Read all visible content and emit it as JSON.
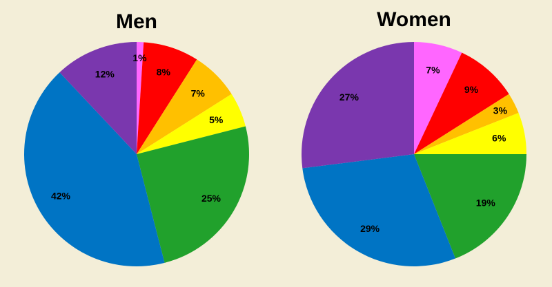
{
  "chart_data": [
    {
      "type": "pie",
      "title": "Men",
      "categories": [
        "pink",
        "red",
        "orange",
        "yellow",
        "green",
        "blue",
        "purple"
      ],
      "values": [
        1,
        8,
        7,
        5,
        25,
        42,
        12
      ],
      "labels": [
        "1%",
        "8%",
        "7%",
        "5%",
        "25%",
        "42%",
        "12%"
      ],
      "colors": [
        "#ff66ff",
        "#ff0000",
        "#ffc000",
        "#ffff00",
        "#21a12c",
        "#0074c4",
        "#7a37ae"
      ]
    },
    {
      "type": "pie",
      "title": "Women",
      "categories": [
        "pink",
        "red",
        "orange",
        "yellow",
        "green",
        "blue",
        "purple"
      ],
      "values": [
        7,
        9,
        3,
        6,
        19,
        29,
        27
      ],
      "labels": [
        "7%",
        "9%",
        "3%",
        "6%",
        "19%",
        "29%",
        "27%"
      ],
      "colors": [
        "#ff66ff",
        "#ff0000",
        "#ffc000",
        "#ffff00",
        "#21a12c",
        "#0074c4",
        "#7a37ae"
      ]
    }
  ]
}
